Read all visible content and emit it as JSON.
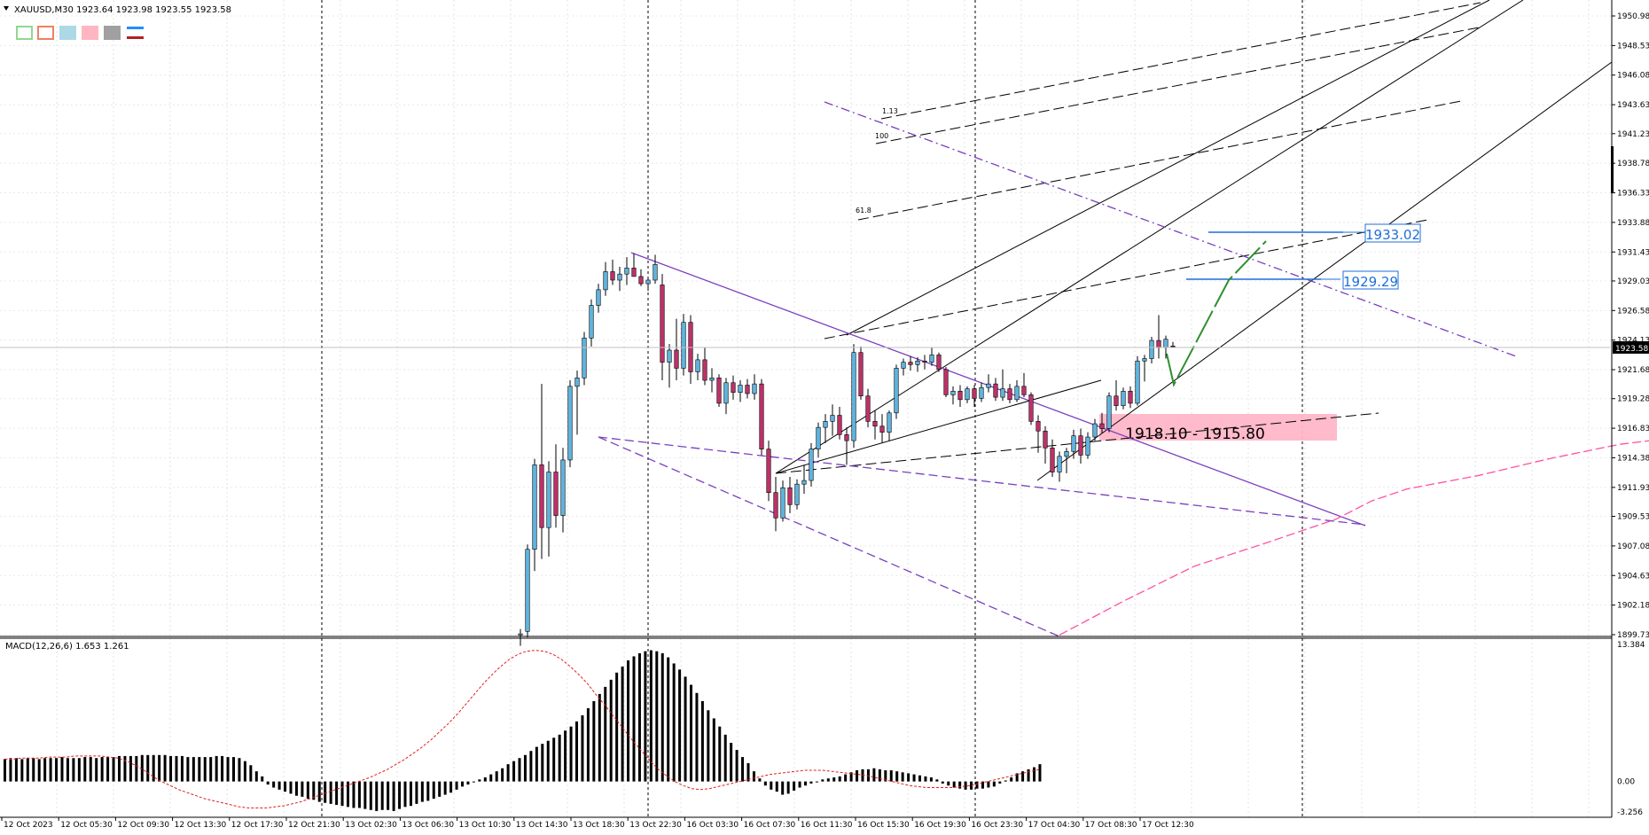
{
  "header": {
    "symbol_line": "XAUUSD,M30  1923.64 1923.98 1923.55 1923.58",
    "macd_label": "MACD(12,26,6) 1.653 1.261"
  },
  "toolbar": {
    "icons": [
      {
        "name": "rectangle-outline-green-icon",
        "color": "#8fd88f"
      },
      {
        "name": "rectangle-outline-red-icon",
        "color": "#f08060"
      },
      {
        "name": "rectangle-fill-lightblue-icon",
        "color": "#add8e6"
      },
      {
        "name": "rectangle-fill-pink-icon",
        "color": "#ffb6c1"
      },
      {
        "name": "rectangle-fill-gray-icon",
        "color": "#a0a0a0"
      },
      {
        "name": "line-style-icon",
        "color": "#1e90ff"
      }
    ]
  },
  "colors": {
    "bull": "#5fb4e0",
    "bear": "#c0306a",
    "ma": "#ff4fa0",
    "trend": "#7b3fbf",
    "arrow": "#2f8f2f",
    "zone": "#ffb6c8",
    "level": "#1e6fd9"
  },
  "chart_data": {
    "type": "candlestick",
    "symbol": "XAUUSD",
    "timeframe": "M30",
    "ohlc_current": {
      "open": 1923.64,
      "high": 1923.98,
      "low": 1923.55,
      "close": 1923.58
    },
    "price_axis_ticks": [
      "1950.98",
      "1948.53",
      "1946.08",
      "1943.63",
      "1941.23",
      "1938.78",
      "1936.33",
      "1933.88",
      "1931.43",
      "1929.03",
      "1926.58",
      "1924.13",
      "1921.68",
      "1919.28",
      "1916.83",
      "1914.38",
      "1911.93",
      "1909.53",
      "1907.08",
      "1904.63",
      "1902.18",
      "1899.73"
    ],
    "current_price_label": "1923.58",
    "time_axis_labels": [
      "12 Oct 2023",
      "12 Oct 05:30",
      "12 Oct 09:30",
      "12 Oct 13:30",
      "12 Oct 17:30",
      "12 Oct 21:30",
      "13 Oct 02:30",
      "13 Oct 06:30",
      "13 Oct 10:30",
      "13 Oct 14:30",
      "13 Oct 18:30",
      "13 Oct 22:30",
      "16 Oct 03:30",
      "16 Oct 07:30",
      "16 Oct 11:30",
      "16 Oct 15:30",
      "16 Oct 19:30",
      "16 Oct 23:30",
      "17 Oct 04:30",
      "17 Oct 08:30",
      "17 Oct 12:30"
    ],
    "candles": [
      [
        1899.7,
        1900.2,
        1898.8,
        1899.8
      ],
      [
        1900.0,
        1907.2,
        1899.5,
        1906.8
      ],
      [
        1906.8,
        1914.3,
        1905.0,
        1913.8
      ],
      [
        1913.8,
        1920.5,
        1906.0,
        1908.6
      ],
      [
        1908.6,
        1914.1,
        1906.2,
        1913.2
      ],
      [
        1913.2,
        1915.5,
        1908.6,
        1909.6
      ],
      [
        1909.6,
        1915.2,
        1908.2,
        1914.2
      ],
      [
        1914.2,
        1920.8,
        1913.6,
        1920.3
      ],
      [
        1920.3,
        1921.6,
        1916.3,
        1921.0
      ],
      [
        1921.0,
        1924.8,
        1920.4,
        1924.3
      ],
      [
        1924.3,
        1927.5,
        1923.6,
        1927.0
      ],
      [
        1927.0,
        1928.8,
        1926.4,
        1928.3
      ],
      [
        1928.3,
        1930.6,
        1927.8,
        1929.8
      ],
      [
        1929.8,
        1930.8,
        1928.7,
        1929.1
      ],
      [
        1929.1,
        1930.2,
        1928.2,
        1929.6
      ],
      [
        1929.6,
        1931.0,
        1928.7,
        1930.1
      ],
      [
        1930.1,
        1931.3,
        1929.4,
        1929.4
      ],
      [
        1929.4,
        1930.0,
        1928.6,
        1928.8
      ],
      [
        1928.8,
        1929.3,
        1928.2,
        1929.1
      ],
      [
        1929.1,
        1931.2,
        1928.8,
        1930.4
      ],
      [
        1928.7,
        1929.6,
        1920.8,
        1922.3
      ],
      [
        1922.3,
        1923.8,
        1920.2,
        1923.3
      ],
      [
        1923.3,
        1925.9,
        1920.8,
        1921.8
      ],
      [
        1921.8,
        1926.3,
        1921.2,
        1925.6
      ],
      [
        1925.6,
        1926.2,
        1920.5,
        1921.5
      ],
      [
        1921.5,
        1923.0,
        1920.8,
        1922.5
      ],
      [
        1922.5,
        1923.5,
        1920.4,
        1920.8
      ],
      [
        1920.8,
        1921.8,
        1919.8,
        1921.0
      ],
      [
        1921.0,
        1921.3,
        1918.6,
        1918.9
      ],
      [
        1918.9,
        1921.0,
        1918.0,
        1920.6
      ],
      [
        1920.6,
        1921.2,
        1919.2,
        1919.8
      ],
      [
        1919.8,
        1920.8,
        1919.0,
        1920.4
      ],
      [
        1920.4,
        1920.9,
        1919.3,
        1919.7
      ],
      [
        1919.7,
        1921.3,
        1919.2,
        1920.5
      ],
      [
        1920.5,
        1920.9,
        1914.6,
        1915.1
      ],
      [
        1915.1,
        1915.8,
        1910.8,
        1911.5
      ],
      [
        1911.5,
        1912.8,
        1908.3,
        1909.4
      ],
      [
        1909.4,
        1912.5,
        1909.1,
        1911.9
      ],
      [
        1911.9,
        1912.8,
        1909.8,
        1910.5
      ],
      [
        1910.5,
        1912.6,
        1910.1,
        1912.2
      ],
      [
        1912.2,
        1913.8,
        1911.4,
        1912.5
      ],
      [
        1912.5,
        1915.6,
        1912.0,
        1915.1
      ],
      [
        1915.1,
        1917.3,
        1914.4,
        1916.9
      ],
      [
        1916.9,
        1918.0,
        1915.6,
        1917.4
      ],
      [
        1917.4,
        1918.8,
        1916.2,
        1917.9
      ],
      [
        1917.9,
        1918.6,
        1915.9,
        1916.3
      ],
      [
        1916.3,
        1916.9,
        1913.8,
        1915.8
      ],
      [
        1915.8,
        1923.8,
        1915.2,
        1923.1
      ],
      [
        1923.1,
        1923.6,
        1919.2,
        1919.5
      ],
      [
        1919.5,
        1920.1,
        1916.9,
        1917.4
      ],
      [
        1917.4,
        1918.3,
        1915.9,
        1917.0
      ],
      [
        1917.0,
        1918.0,
        1915.6,
        1916.5
      ],
      [
        1916.5,
        1918.3,
        1915.8,
        1918.1
      ],
      [
        1918.1,
        1922.1,
        1917.6,
        1921.8
      ],
      [
        1921.8,
        1922.6,
        1921.2,
        1922.3
      ],
      [
        1922.3,
        1922.8,
        1921.6,
        1922.1
      ],
      [
        1922.1,
        1922.7,
        1921.5,
        1922.4
      ],
      [
        1922.4,
        1922.9,
        1921.7,
        1922.3
      ],
      [
        1922.3,
        1923.5,
        1922.0,
        1922.9
      ],
      [
        1922.9,
        1923.1,
        1921.5,
        1921.7
      ],
      [
        1921.7,
        1921.9,
        1919.4,
        1919.6
      ],
      [
        1919.6,
        1920.3,
        1918.8,
        1919.9
      ],
      [
        1919.9,
        1920.4,
        1918.6,
        1919.2
      ],
      [
        1919.2,
        1920.3,
        1918.9,
        1920.1
      ],
      [
        1920.1,
        1920.4,
        1918.6,
        1919.3
      ],
      [
        1919.3,
        1920.6,
        1919.0,
        1920.2
      ],
      [
        1920.2,
        1921.3,
        1919.8,
        1920.5
      ],
      [
        1920.5,
        1921.0,
        1919.1,
        1919.4
      ],
      [
        1919.4,
        1921.7,
        1919.1,
        1920.1
      ],
      [
        1920.1,
        1920.5,
        1918.9,
        1919.2
      ],
      [
        1919.2,
        1920.8,
        1919.0,
        1920.3
      ],
      [
        1920.3,
        1921.4,
        1919.4,
        1919.6
      ],
      [
        1919.6,
        1919.8,
        1917.1,
        1917.4
      ],
      [
        1917.4,
        1917.9,
        1914.8,
        1916.6
      ],
      [
        1916.6,
        1917.0,
        1913.9,
        1915.2
      ],
      [
        1915.2,
        1915.9,
        1912.8,
        1913.2
      ],
      [
        1913.2,
        1914.9,
        1912.4,
        1914.5
      ],
      [
        1914.5,
        1915.2,
        1913.1,
        1914.9
      ],
      [
        1914.9,
        1916.7,
        1914.3,
        1916.2
      ],
      [
        1916.2,
        1916.8,
        1913.9,
        1914.6
      ],
      [
        1914.6,
        1916.5,
        1914.3,
        1916.1
      ],
      [
        1916.1,
        1917.6,
        1915.8,
        1917.2
      ],
      [
        1917.2,
        1918.1,
        1916.4,
        1916.8
      ],
      [
        1916.8,
        1919.8,
        1916.5,
        1919.5
      ],
      [
        1919.5,
        1920.8,
        1918.3,
        1918.7
      ],
      [
        1918.7,
        1920.2,
        1918.4,
        1919.9
      ],
      [
        1919.9,
        1920.3,
        1918.5,
        1918.9
      ],
      [
        1918.9,
        1922.8,
        1918.7,
        1922.4
      ],
      [
        1922.4,
        1922.9,
        1920.7,
        1922.6
      ],
      [
        1922.6,
        1924.4,
        1922.2,
        1924.1
      ],
      [
        1924.1,
        1926.2,
        1922.6,
        1923.5
      ],
      [
        1923.5,
        1924.5,
        1922.6,
        1924.2
      ],
      [
        1923.64,
        1923.98,
        1923.55,
        1923.58
      ]
    ],
    "moving_average_points": [
      [
        96,
        1899.7
      ],
      [
        105,
        1902.5
      ],
      [
        115,
        1905.4
      ],
      [
        125,
        1907.3
      ],
      [
        135,
        1909.3
      ],
      [
        140,
        1910.8
      ],
      [
        145,
        1911.8
      ],
      [
        155,
        1912.9
      ],
      [
        165,
        1914.3
      ],
      [
        175,
        1915.5
      ],
      [
        185,
        1916.2
      ],
      [
        195,
        1916.6
      ],
      [
        200,
        1916.2
      ],
      [
        205,
        1916.8
      ],
      [
        210,
        1917.4
      ],
      [
        215,
        1917.8
      ],
      [
        220,
        1918.6
      ]
    ],
    "fib_labels": [
      "1.13",
      "100",
      "61.8"
    ],
    "price_levels": [
      {
        "label": "1933.02",
        "value": 1933.02
      },
      {
        "label": "1929.29",
        "value": 1929.29
      }
    ],
    "zone": {
      "label": "1918.10 - 1915.80",
      "high": 1918.1,
      "low": 1915.8
    },
    "macd": {
      "zero_label": "0.00",
      "top_label": "13.384",
      "bottom_label": "-3.256",
      "ylim": [
        -3.256,
        13.384
      ],
      "histogram": [
        2.2,
        2.3,
        2.3,
        2.2,
        2.3,
        2.3,
        2.2,
        2.3,
        2.3,
        2.3,
        2.4,
        2.3,
        2.3,
        2.3,
        2.4,
        2.4,
        2.3,
        2.4,
        2.4,
        2.4,
        2.5,
        2.5,
        2.5,
        2.5,
        2.6,
        2.6,
        2.6,
        2.6,
        2.6,
        2.5,
        2.5,
        2.5,
        2.4,
        2.4,
        2.4,
        2.4,
        2.4,
        2.5,
        2.5,
        2.4,
        2.4,
        2.3,
        2.0,
        1.6,
        1.0,
        0.5,
        -0.3,
        -0.6,
        -0.8,
        -1.0,
        -1.2,
        -1.4,
        -1.5,
        -1.7,
        -1.8,
        -2.0,
        -2.1,
        -2.2,
        -2.3,
        -2.4,
        -2.5,
        -2.6,
        -2.6,
        -2.7,
        -2.8,
        -2.9,
        -2.8,
        -2.8,
        -2.9,
        -2.7,
        -2.5,
        -2.4,
        -2.2,
        -2.0,
        -1.9,
        -1.7,
        -1.5,
        -1.3,
        -1.1,
        -0.8,
        -0.5,
        -0.3,
        0.0,
        0.2,
        0.4,
        0.7,
        1.0,
        1.3,
        1.7,
        2.0,
        2.3,
        2.6,
        3.0,
        3.4,
        3.7,
        4.0,
        4.3,
        4.6,
        5.0,
        5.4,
        5.9,
        6.5,
        7.2,
        7.9,
        8.6,
        9.3,
        10.0,
        10.7,
        11.3,
        11.9,
        12.3,
        12.6,
        12.8,
        12.9,
        12.8,
        12.6,
        12.2,
        11.6,
        11.0,
        10.3,
        9.5,
        8.7,
        7.9,
        7.0,
        6.2,
        5.4,
        4.6,
        3.8,
        3.1,
        2.4,
        1.8,
        1.0,
        0.3,
        -0.4,
        -0.8,
        -1.0,
        -1.3,
        -1.2,
        -0.9,
        -0.6,
        -0.4,
        -0.2,
        0.0,
        0.2,
        0.3,
        0.4,
        0.5,
        0.7,
        0.9,
        1.1,
        1.2,
        1.2,
        1.3,
        1.2,
        1.1,
        1.1,
        1.0,
        0.9,
        0.8,
        0.7,
        0.6,
        0.5,
        0.4,
        0.2,
        -0.2,
        -0.4,
        -0.6,
        -0.7,
        -0.8,
        -0.8,
        -0.7,
        -0.7,
        -0.6,
        -0.5,
        -0.2,
        0.1,
        0.4,
        0.8,
        1.0,
        1.2,
        1.4,
        1.7
      ],
      "signal": [
        2.2,
        2.2,
        2.3,
        2.3,
        2.3,
        2.4,
        2.4,
        2.4,
        2.5,
        2.5,
        2.5,
        2.5,
        2.4,
        2.3,
        2.0,
        1.6,
        1.1,
        0.5,
        0.0,
        -0.4,
        -0.8,
        -1.1,
        -1.4,
        -1.7,
        -1.9,
        -2.1,
        -2.3,
        -2.5,
        -2.6,
        -2.6,
        -2.6,
        -2.5,
        -2.4,
        -2.2,
        -2.0,
        -1.7,
        -1.4,
        -1.1,
        -0.8,
        -0.5,
        -0.2,
        0.1,
        0.4,
        0.8,
        1.2,
        1.7,
        2.2,
        2.8,
        3.4,
        4.1,
        4.9,
        5.7,
        6.6,
        7.6,
        8.6,
        9.6,
        10.5,
        11.3,
        12.0,
        12.5,
        12.8,
        12.9,
        12.8,
        12.5,
        12.0,
        11.3,
        10.5,
        9.6,
        8.5,
        7.5,
        6.4,
        5.3,
        4.2,
        3.2,
        2.2,
        1.3,
        0.6,
        0.0,
        -0.4,
        -0.7,
        -0.8,
        -0.7,
        -0.5,
        -0.3,
        -0.1,
        0.1,
        0.3,
        0.5,
        0.7,
        0.8,
        0.9,
        1.0,
        1.1,
        1.1,
        1.1,
        1.0,
        0.9,
        0.8,
        0.7,
        0.6,
        0.4,
        0.2,
        0.0,
        -0.2,
        -0.4,
        -0.5,
        -0.6,
        -0.6,
        -0.6,
        -0.6,
        -0.5,
        -0.4,
        -0.2,
        0.0,
        0.2,
        0.4,
        0.6,
        0.8,
        1.0,
        1.2
      ]
    }
  }
}
